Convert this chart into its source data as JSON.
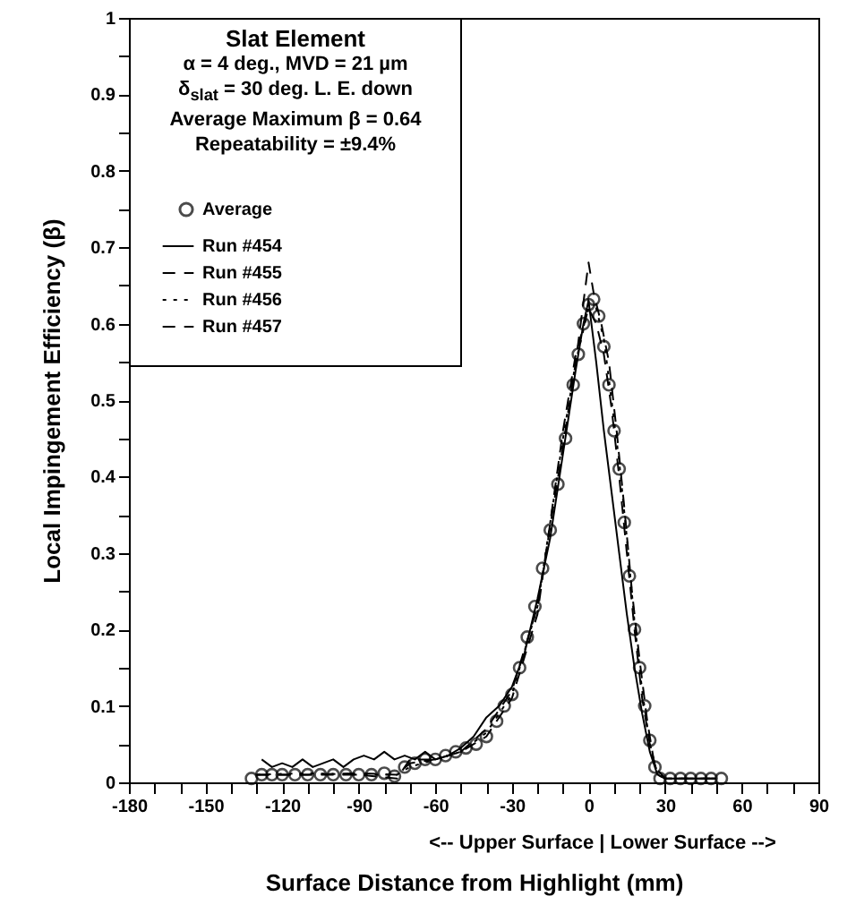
{
  "chart_data": {
    "type": "line",
    "xlabel": "Surface Distance from Highlight (mm)",
    "ylabel": "Local Impingement Efficiency (β)",
    "annotations": [
      "Slat Element",
      "α = 4 deg., MVD = 21 µm",
      "δ$_{slat}$ = 30 deg. L. E. down",
      "Average Maximum β = 0.64",
      "Repeatability = ±9.4%",
      "<-- Upper Surface | Lower Surface -->"
    ],
    "xlim": [
      -180,
      90
    ],
    "xticks": [
      -180,
      {
        "value": -170,
        "label": null
      },
      {
        "value": -160,
        "label": null
      },
      -150,
      {
        "value": -140,
        "label": null
      },
      {
        "value": -130,
        "label": null
      },
      -120,
      {
        "value": -110,
        "label": null
      },
      {
        "value": -100,
        "label": null
      },
      -90,
      {
        "value": -80,
        "label": null
      },
      {
        "value": -70,
        "label": null
      },
      -60,
      {
        "value": -50,
        "label": null
      },
      {
        "value": -40,
        "label": null
      },
      -30,
      {
        "value": -20,
        "label": null
      },
      {
        "value": -10,
        "label": null
      },
      0,
      {
        "value": 10,
        "label": null
      },
      {
        "value": 20,
        "label": null
      },
      30,
      {
        "value": 40,
        "label": null
      },
      {
        "value": 50,
        "label": null
      },
      60,
      {
        "value": 70,
        "label": null
      },
      {
        "value": 80,
        "label": null
      },
      90
    ],
    "ylim": [
      0,
      1
    ],
    "yticks": [
      0,
      {
        "value": 0.05,
        "label": null
      },
      0.1,
      {
        "value": 0.15,
        "label": null
      },
      0.2,
      {
        "value": 0.25,
        "label": null
      },
      0.3,
      {
        "value": 0.35,
        "label": null
      },
      0.4,
      {
        "value": 0.45,
        "label": null
      },
      0.5,
      {
        "value": 0.55,
        "label": null
      },
      0.6,
      {
        "value": 0.65,
        "label": null
      },
      0.7,
      {
        "value": 0.75,
        "label": null
      },
      0.8,
      {
        "value": 0.85,
        "label": null
      },
      0.9,
      {
        "value": 0.95,
        "label": null
      },
      1
    ],
    "grid": false,
    "legend": "top left",
    "series": [
      {
        "name": "Average",
        "type": "scatter",
        "marker": "circle",
        "color": "#000000",
        "x": [
          -132,
          -128,
          -124,
          -120,
          -115,
          -110,
          -105,
          -100,
          -95,
          -90,
          -85,
          -80,
          -76,
          -72,
          -68,
          -64,
          -60,
          -56,
          -52,
          -48,
          -44,
          -40,
          -36,
          -33,
          -30,
          -27,
          -24,
          -21,
          -18,
          -15,
          -12,
          -9,
          -6,
          -4,
          -2,
          0,
          2,
          4,
          6,
          8,
          10,
          12,
          14,
          16,
          18,
          20,
          22,
          24,
          26,
          28,
          32,
          36,
          40,
          44,
          48,
          52
        ],
        "values": [
          0.005,
          0.01,
          0.01,
          0.01,
          0.01,
          0.01,
          0.01,
          0.01,
          0.01,
          0.01,
          0.01,
          0.012,
          0.008,
          0.02,
          0.025,
          0.03,
          0.03,
          0.035,
          0.04,
          0.045,
          0.05,
          0.06,
          0.08,
          0.1,
          0.115,
          0.15,
          0.19,
          0.23,
          0.28,
          0.33,
          0.39,
          0.45,
          0.52,
          0.56,
          0.6,
          0.625,
          0.632,
          0.61,
          0.57,
          0.52,
          0.46,
          0.41,
          0.34,
          0.27,
          0.2,
          0.15,
          0.1,
          0.055,
          0.02,
          0.005,
          0.005,
          0.005,
          0.005,
          0.005,
          0.005,
          0.005
        ]
      },
      {
        "name": "Run #454",
        "line_style": "solid",
        "color": "#000000",
        "x": [
          -128,
          -124,
          -120,
          -116,
          -112,
          -108,
          -104,
          -100,
          -96,
          -92,
          -88,
          -84,
          -80,
          -76,
          -72,
          -68,
          -64,
          -60,
          -55,
          -50,
          -45,
          -40,
          -35,
          -30,
          -25,
          -20,
          -15,
          -10,
          -5,
          -2,
          0,
          3,
          6,
          9,
          12,
          15,
          18,
          21,
          24,
          27,
          30,
          40,
          50
        ],
        "values": [
          0.03,
          0.02,
          0.025,
          0.02,
          0.03,
          0.02,
          0.025,
          0.03,
          0.02,
          0.03,
          0.035,
          0.03,
          0.04,
          0.03,
          0.035,
          0.03,
          0.04,
          0.03,
          0.035,
          0.045,
          0.06,
          0.085,
          0.1,
          0.125,
          0.17,
          0.24,
          0.32,
          0.43,
          0.54,
          0.6,
          0.63,
          0.55,
          0.46,
          0.38,
          0.3,
          0.22,
          0.15,
          0.09,
          0.04,
          0.01,
          0.005,
          0.005,
          0.005
        ]
      },
      {
        "name": "Run #455",
        "line_style": "dashed",
        "color": "#000000",
        "x": [
          -130,
          -110,
          -90,
          -75,
          -70,
          -60,
          -50,
          -40,
          -30,
          -20,
          -10,
          -5,
          0,
          2,
          5,
          8,
          11,
          14,
          17,
          20,
          23,
          26,
          30,
          50
        ],
        "values": [
          0.01,
          0.01,
          0.01,
          0.005,
          0.03,
          0.03,
          0.04,
          0.07,
          0.12,
          0.23,
          0.44,
          0.55,
          0.68,
          0.64,
          0.6,
          0.55,
          0.46,
          0.36,
          0.25,
          0.16,
          0.08,
          0.02,
          0.005,
          0.005
        ]
      },
      {
        "name": "Run #456",
        "line_style": "dotted",
        "color": "#000000",
        "x": [
          -130,
          -110,
          -90,
          -75,
          -70,
          -60,
          -50,
          -40,
          -30,
          -20,
          -10,
          -5,
          0,
          3,
          6,
          9,
          12,
          15,
          18,
          21,
          24,
          27,
          30,
          50
        ],
        "values": [
          0.01,
          0.012,
          0.01,
          0.01,
          0.02,
          0.03,
          0.04,
          0.065,
          0.115,
          0.23,
          0.45,
          0.55,
          0.62,
          0.62,
          0.58,
          0.5,
          0.42,
          0.32,
          0.21,
          0.12,
          0.05,
          0.01,
          0.005,
          0.005
        ]
      },
      {
        "name": "Run #457",
        "line_style": "dashed",
        "color": "#000000",
        "x": [
          -130,
          -110,
          -90,
          -75,
          -70,
          -60,
          -50,
          -40,
          -30,
          -20,
          -10,
          -5,
          0,
          3,
          6,
          9,
          12,
          15,
          18,
          21,
          24,
          27,
          30,
          50
        ],
        "values": [
          0.01,
          0.01,
          0.012,
          0.01,
          0.025,
          0.03,
          0.04,
          0.06,
          0.11,
          0.22,
          0.46,
          0.56,
          0.62,
          0.6,
          0.56,
          0.49,
          0.4,
          0.3,
          0.2,
          0.11,
          0.05,
          0.01,
          0.005,
          0.005
        ]
      }
    ]
  }
}
